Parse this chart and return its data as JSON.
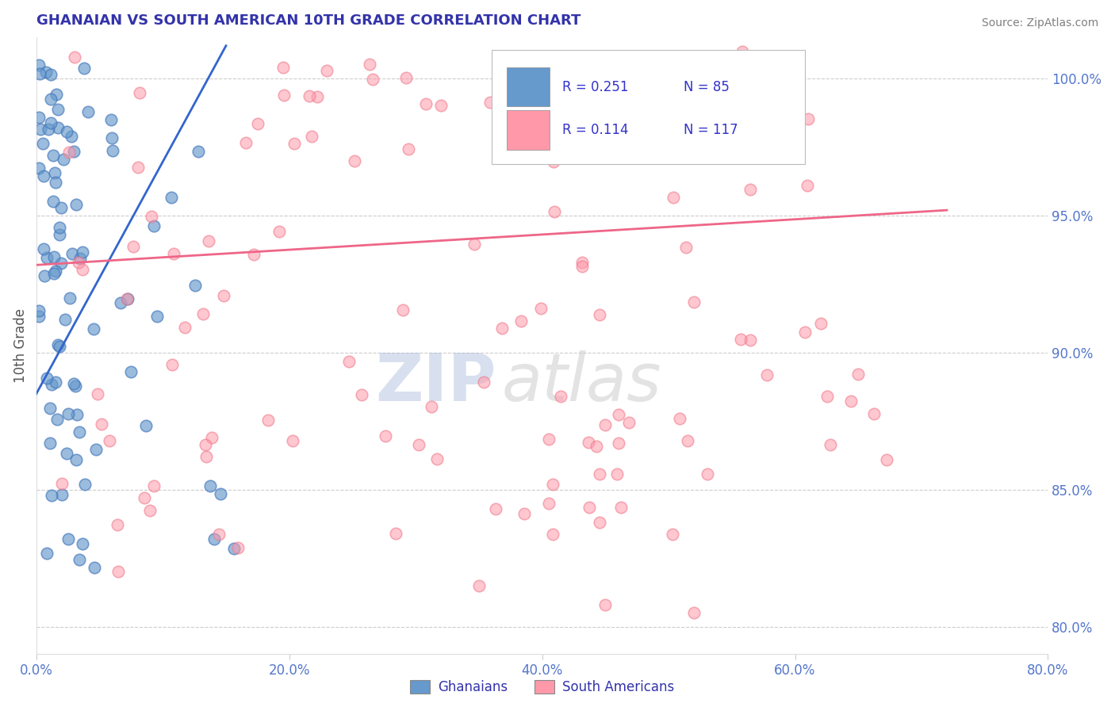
{
  "title": "GHANAIAN VS SOUTH AMERICAN 10TH GRADE CORRELATION CHART",
  "source_text": "Source: ZipAtlas.com",
  "ylabel": "10th Grade",
  "x_tick_labels": [
    "0.0%",
    "20.0%",
    "40.0%",
    "60.0%",
    "80.0%"
  ],
  "x_tick_values": [
    0.0,
    20.0,
    40.0,
    60.0,
    80.0
  ],
  "y_right_tick_labels": [
    "80.0%",
    "85.0%",
    "90.0%",
    "95.0%",
    "100.0%"
  ],
  "y_right_tick_values": [
    80.0,
    85.0,
    90.0,
    95.0,
    100.0
  ],
  "xlim": [
    0.0,
    80.0
  ],
  "ylim": [
    79.0,
    101.5
  ],
  "ghanaian_color": "#6699CC",
  "ghanaian_edge_color": "#4477BB",
  "south_american_color": "#FF99AA",
  "south_american_edge_color": "#EE7788",
  "blue_line_color": "#3366CC",
  "pink_line_color": "#EE6688",
  "ghanaian_R": 0.251,
  "ghanaian_N": 85,
  "south_american_R": 0.114,
  "south_american_N": 117,
  "legend_labels": [
    "Ghanaians",
    "South Americans"
  ],
  "watermark_zip": "ZIP",
  "watermark_atlas": "atlas",
  "title_color": "#3333AA",
  "axis_label_color": "#3333AA",
  "tick_color": "#5577CC",
  "r_n_color": "#3333CC",
  "background_color": "#FFFFFF",
  "grid_color": "#CCCCCC",
  "blue_line_x": [
    0.0,
    15.0
  ],
  "blue_line_y": [
    88.5,
    101.2
  ],
  "pink_line_x": [
    0.0,
    72.0
  ],
  "pink_line_y": [
    93.2,
    95.2
  ]
}
